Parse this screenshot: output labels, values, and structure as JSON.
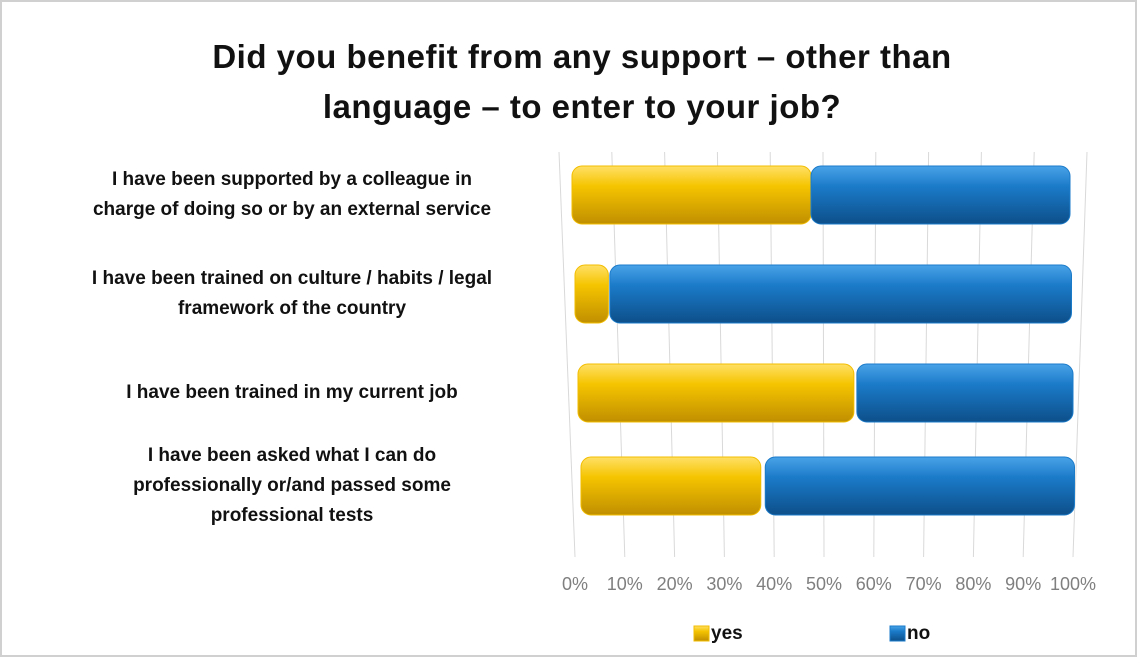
{
  "chart_data": {
    "type": "bar",
    "stacked": true,
    "orientation": "horizontal",
    "title": "Did you benefit from any support – other than language – to enter to your job?",
    "categories": [
      "I have been supported by a colleague in\ncharge of doing so or by an external service",
      "I have been trained on culture / habits / legal\nframework of the country",
      "I have been trained in my current job",
      "I have been asked what I can do\nprofessionally or/and passed some\nprofessional tests"
    ],
    "series": [
      {
        "name": "yes",
        "color": "#f2bd00",
        "values": [
          48,
          7,
          56,
          37
        ]
      },
      {
        "name": "no",
        "color": "#1b7bc9",
        "values": [
          52,
          93,
          44,
          63
        ]
      }
    ],
    "xlim": [
      0,
      100
    ],
    "xticks": [
      {
        "value": 0,
        "label": "0%"
      },
      {
        "value": 10,
        "label": "10%"
      },
      {
        "value": 20,
        "label": "20%"
      },
      {
        "value": 30,
        "label": "30%"
      },
      {
        "value": 40,
        "label": "40%"
      },
      {
        "value": 50,
        "label": "50%"
      },
      {
        "value": 60,
        "label": "60%"
      },
      {
        "value": 70,
        "label": "70%"
      },
      {
        "value": 80,
        "label": "80%"
      },
      {
        "value": 90,
        "label": "90%"
      },
      {
        "value": 100,
        "label": "100%"
      }
    ],
    "grid": true,
    "legend": "bottom"
  }
}
